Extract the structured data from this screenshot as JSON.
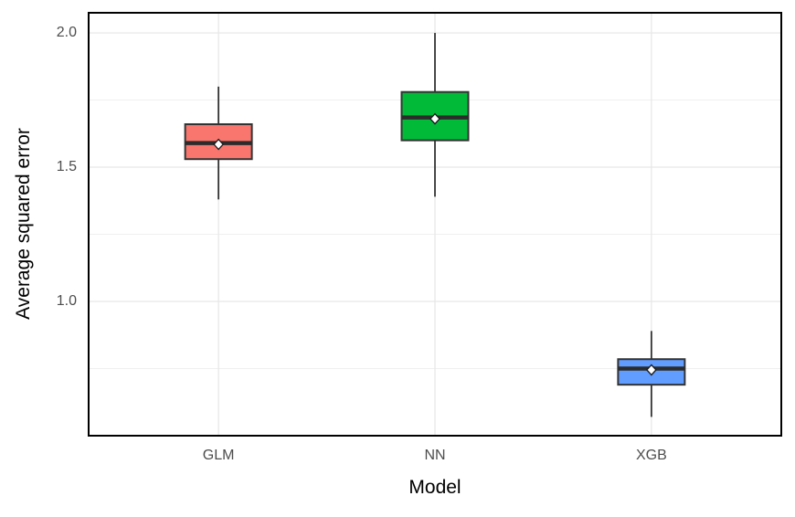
{
  "chart_data": {
    "type": "boxplot",
    "xlabel": "Model",
    "ylabel": "Average squared error",
    "categories": [
      "GLM",
      "NN",
      "XGB"
    ],
    "ylim": [
      0.5,
      2.075
    ],
    "y_major_ticks": [
      {
        "label": "2.0",
        "value": 2.0
      },
      {
        "label": "1.5",
        "value": 1.5
      },
      {
        "label": "1.0",
        "value": 1.0
      }
    ],
    "y_minor_gridlines": [
      1.75,
      1.25,
      0.75
    ],
    "grid": "major+minor horizontal, major vertical per category",
    "legend": "none",
    "series": [
      {
        "name": "GLM",
        "fill": "#F8766D",
        "whisker_low": 1.38,
        "q1": 1.53,
        "median": 1.59,
        "mean": 1.585,
        "q3": 1.66,
        "whisker_high": 1.8
      },
      {
        "name": "NN",
        "fill": "#00BA38",
        "whisker_low": 1.39,
        "q1": 1.6,
        "median": 1.685,
        "mean": 1.68,
        "q3": 1.78,
        "whisker_high": 2.0
      },
      {
        "name": "XGB",
        "fill": "#619CFF",
        "whisker_low": 0.57,
        "q1": 0.69,
        "median": 0.75,
        "mean": 0.745,
        "q3": 0.785,
        "whisker_high": 0.89
      }
    ],
    "colors": {
      "background": "#ffffff",
      "panel_border": "#000000",
      "grid_major": "#e6e6e6",
      "grid_minor": "#f0f0f0",
      "box_border": "#333333",
      "median_line": "#2b2b2b",
      "mean_marker_fill": "#ffffff",
      "mean_marker_border": "#1a1a1a",
      "tick_label": "#4d4d4d",
      "axis_title": "#000000"
    }
  }
}
